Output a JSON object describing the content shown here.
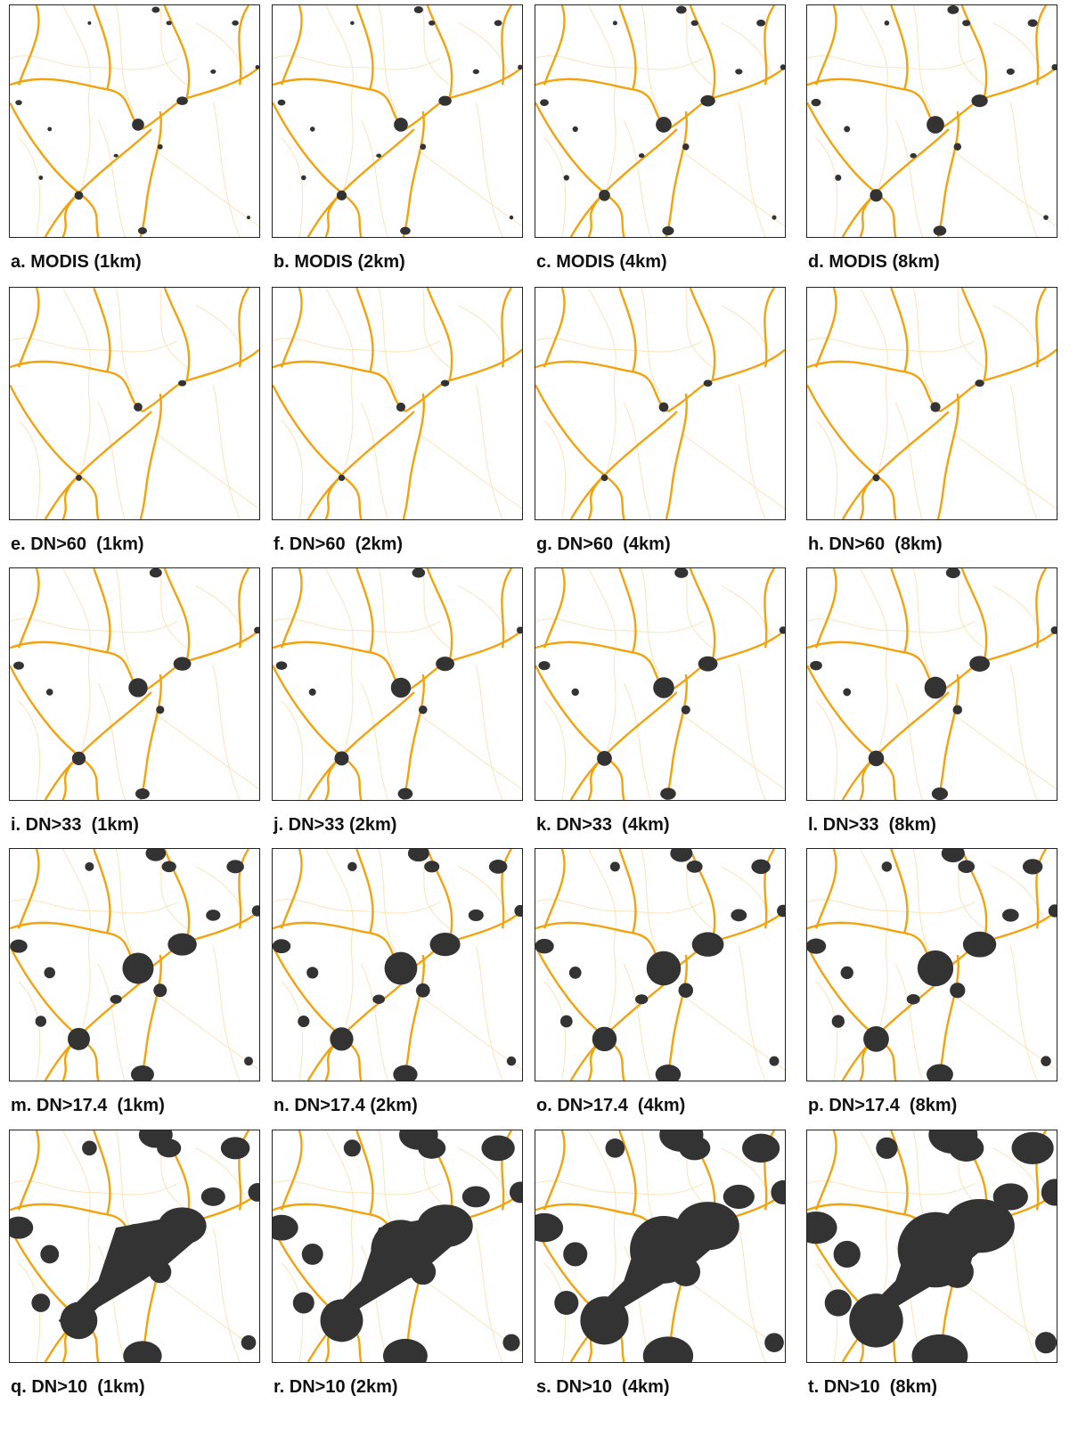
{
  "figure": {
    "panels": [
      "a. MODIS (1km)",
      "b. MODIS (2km)",
      "c. MODIS (4km)",
      "d. MODIS (8km)",
      "e. DN>60  (1km)",
      "f. DN>60  (2km)",
      "g. DN>60  (4km)",
      "h. DN>60  (8km)",
      "i. DN>33  (1km)",
      "j. DN>33 (2km)",
      "k. DN>33  (4km)",
      "l. DN>33  (8km)",
      "m. DN>17.4  (1km)",
      "n. DN>17.4 (2km)",
      "o. DN>17.4  (4km)",
      "p. DN>17.4  (8km)",
      "q. DN>10  (1km)",
      "r. DN>10 (2km)",
      "s. DN>10  (4km)",
      "t. DN>10  (8km)"
    ]
  }
}
